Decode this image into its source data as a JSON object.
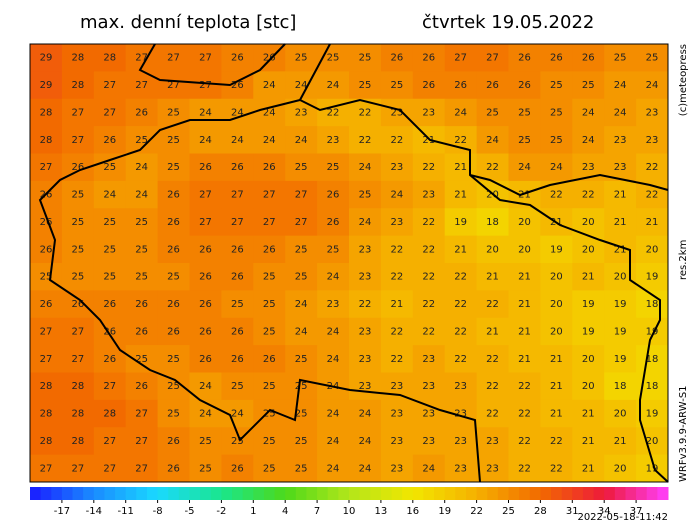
{
  "header": {
    "title": "max. denní teplota [stc]",
    "date": "čtvrtek 19.05.2022"
  },
  "side": {
    "copyright": "(c)meteopress",
    "resolution": "res.2km",
    "model": "WRFv3.9.9-ARW-S1"
  },
  "footer": {
    "timestamp": "2022-05-18-11:42"
  },
  "colorbar": {
    "lim": [
      -20,
      40
    ],
    "ticks": [
      -17,
      -14,
      -11,
      -8,
      -5,
      -2,
      1,
      4,
      7,
      10,
      13,
      16,
      19,
      22,
      25,
      28,
      31,
      34,
      37
    ],
    "colors": [
      "#1a1aff",
      "#1a8cff",
      "#1ad9ff",
      "#1ae68c",
      "#4dd91a",
      "#b3e61a",
      "#f2e600",
      "#f5b000",
      "#f26a00",
      "#ee1a3a",
      "#ff40ff"
    ]
  },
  "grid": {
    "rows": [
      [
        29,
        28,
        28,
        27,
        27,
        27,
        26,
        26,
        25,
        25,
        25,
        26,
        26,
        27,
        27,
        26,
        26,
        26,
        25,
        25
      ],
      [
        29,
        28,
        27,
        27,
        27,
        27,
        26,
        24,
        24,
        24,
        25,
        25,
        26,
        26,
        26,
        26,
        25,
        25,
        24,
        24
      ],
      [
        28,
        27,
        27,
        26,
        25,
        24,
        24,
        24,
        23,
        22,
        22,
        23,
        23,
        24,
        25,
        25,
        25,
        24,
        24,
        23
      ],
      [
        28,
        27,
        26,
        25,
        25,
        24,
        24,
        24,
        24,
        23,
        22,
        22,
        21,
        22,
        24,
        25,
        25,
        24,
        23,
        23
      ],
      [
        27,
        26,
        25,
        24,
        25,
        26,
        26,
        26,
        25,
        25,
        24,
        23,
        22,
        21,
        22,
        24,
        24,
        23,
        23,
        22
      ],
      [
        26,
        25,
        24,
        24,
        26,
        27,
        27,
        27,
        27,
        26,
        25,
        24,
        23,
        21,
        20,
        21,
        22,
        22,
        21,
        22
      ],
      [
        26,
        25,
        25,
        25,
        26,
        27,
        27,
        27,
        27,
        26,
        24,
        23,
        22,
        19,
        18,
        20,
        21,
        20,
        21,
        21
      ],
      [
        26,
        25,
        25,
        25,
        26,
        26,
        26,
        26,
        25,
        25,
        23,
        22,
        22,
        21,
        20,
        20,
        19,
        20,
        21,
        20
      ],
      [
        25,
        25,
        25,
        25,
        25,
        26,
        26,
        25,
        25,
        24,
        23,
        22,
        22,
        22,
        21,
        21,
        20,
        21,
        20,
        19
      ],
      [
        26,
        26,
        26,
        26,
        26,
        26,
        25,
        25,
        24,
        23,
        22,
        21,
        22,
        22,
        22,
        21,
        20,
        19,
        19,
        18
      ],
      [
        27,
        27,
        26,
        26,
        26,
        26,
        26,
        25,
        24,
        24,
        23,
        22,
        22,
        22,
        21,
        21,
        20,
        19,
        19,
        19
      ],
      [
        27,
        27,
        26,
        25,
        25,
        26,
        26,
        26,
        25,
        24,
        23,
        22,
        23,
        22,
        22,
        21,
        21,
        20,
        19,
        18
      ],
      [
        28,
        28,
        27,
        26,
        25,
        24,
        25,
        25,
        25,
        24,
        23,
        23,
        23,
        23,
        22,
        22,
        21,
        20,
        18,
        18
      ],
      [
        28,
        28,
        28,
        27,
        25,
        24,
        24,
        25,
        25,
        24,
        24,
        23,
        23,
        23,
        22,
        22,
        21,
        21,
        20,
        19
      ],
      [
        28,
        28,
        27,
        27,
        26,
        25,
        25,
        25,
        25,
        24,
        24,
        23,
        23,
        23,
        23,
        22,
        22,
        21,
        21,
        20
      ],
      [
        27,
        27,
        27,
        27,
        26,
        25,
        26,
        25,
        25,
        24,
        24,
        23,
        24,
        23,
        23,
        22,
        22,
        21,
        20,
        19
      ]
    ]
  }
}
